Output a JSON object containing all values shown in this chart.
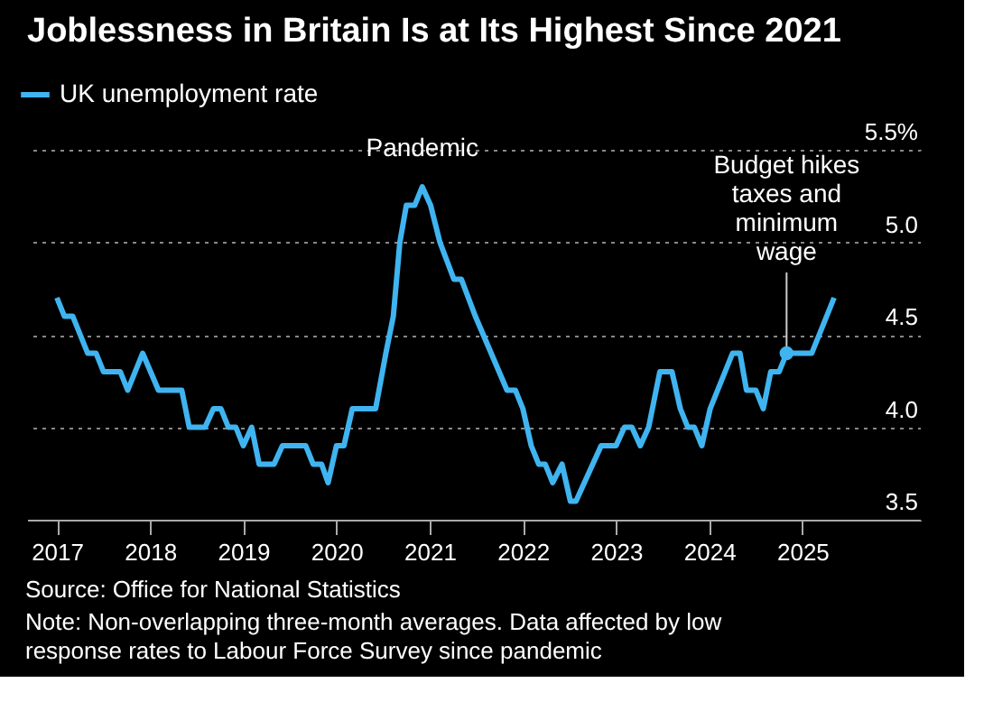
{
  "chart_data": {
    "type": "line",
    "title": "Joblessness in Britain Is at Its Highest Since 2021",
    "x": [
      2017.0,
      2017.08,
      2017.17,
      2017.33,
      2017.42,
      2017.5,
      2017.68,
      2017.76,
      2017.92,
      2018.09,
      2018.34,
      2018.42,
      2018.59,
      2018.68,
      2018.76,
      2018.84,
      2018.92,
      2019.0,
      2019.09,
      2019.17,
      2019.33,
      2019.42,
      2019.67,
      2019.75,
      2019.84,
      2019.91,
      2020.0,
      2020.08,
      2020.17,
      2020.42,
      2020.53,
      2020.61,
      2020.68,
      2020.75,
      2020.84,
      2020.92,
      2021.01,
      2021.11,
      2021.26,
      2021.34,
      2021.49,
      2021.83,
      2021.92,
      2022.0,
      2022.09,
      2022.17,
      2022.24,
      2022.32,
      2022.42,
      2022.51,
      2022.57,
      2022.84,
      2023.0,
      2023.09,
      2023.17,
      2023.26,
      2023.35,
      2023.47,
      2023.6,
      2023.69,
      2023.77,
      2023.84,
      2023.92,
      2024.01,
      2024.09,
      2024.25,
      2024.33,
      2024.4,
      2024.5,
      2024.58,
      2024.66,
      2024.75,
      2024.83,
      2024.9,
      2025.1,
      2025.34
    ],
    "series": [
      {
        "name": "UK unemployment rate",
        "color": "#3fb4f0",
        "values": [
          4.7,
          4.6,
          4.6,
          4.4,
          4.4,
          4.3,
          4.3,
          4.2,
          4.4,
          4.2,
          4.2,
          4.0,
          4.0,
          4.1,
          4.1,
          4.0,
          4.0,
          3.9,
          4.0,
          3.8,
          3.8,
          3.9,
          3.9,
          3.8,
          3.8,
          3.7,
          3.9,
          3.9,
          4.1,
          4.1,
          4.4,
          4.6,
          5.0,
          5.2,
          5.2,
          5.3,
          5.2,
          5.0,
          4.8,
          4.8,
          4.6,
          4.2,
          4.2,
          4.1,
          3.9,
          3.8,
          3.8,
          3.7,
          3.8,
          3.6,
          3.6,
          3.9,
          3.9,
          4.0,
          4.0,
          3.9,
          4.0,
          4.3,
          4.3,
          4.1,
          4.0,
          4.0,
          3.9,
          4.1,
          4.2,
          4.4,
          4.4,
          4.2,
          4.2,
          4.1,
          4.3,
          4.3,
          4.4,
          4.4,
          4.4,
          4.7
        ]
      }
    ],
    "xlim": [
      2016.68,
      2026.27
    ],
    "xticks": [
      {
        "value": 2017,
        "label": "2017"
      },
      {
        "value": 2018,
        "label": "2018"
      },
      {
        "value": 2019,
        "label": "2019"
      },
      {
        "value": 2020,
        "label": "2020"
      },
      {
        "value": 2021,
        "label": "2021"
      },
      {
        "value": 2022,
        "label": "2022"
      },
      {
        "value": 2023,
        "label": "2023"
      },
      {
        "value": 2024,
        "label": "2024"
      },
      {
        "value": 2025,
        "label": "2025"
      }
    ],
    "ylim": [
      3.5,
      5.5
    ],
    "yticks": [
      {
        "value": 3.5,
        "label": "3.5"
      },
      {
        "value": 4.0,
        "label": "4.0"
      },
      {
        "value": 4.5,
        "label": "4.5"
      },
      {
        "value": 5.0,
        "label": "5.0"
      },
      {
        "value": 5.5,
        "label": "5.5%"
      }
    ],
    "grid": "y",
    "legend": "top left",
    "marker": "none",
    "line_style": "solid",
    "annotations": [
      {
        "text": "Pandemic",
        "x": 2020.92,
        "y": 5.3
      },
      {
        "text": "Budget hikes taxes and minimum wage",
        "x": 2024.83,
        "y": 4.4
      },
      "Source: Office for National Statistics",
      "Note: Non-overlapping three-month averages. Data affected by low response rates to Labour Force Survey since pandemic"
    ]
  }
}
